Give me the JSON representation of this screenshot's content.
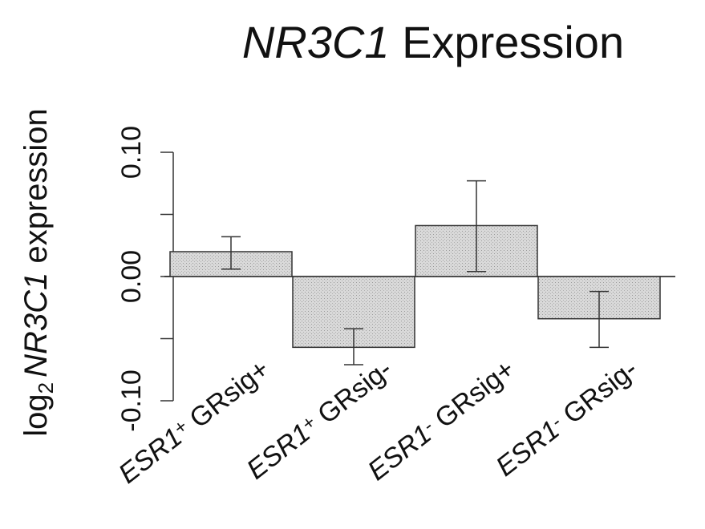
{
  "chart_data": {
    "type": "bar",
    "title_gene": "NR3C1",
    "title_rest": " Expression",
    "ylabel_prefix": "log",
    "ylabel_sub": "2",
    "ylabel_gene": "NR3C1",
    "ylabel_rest": " expression",
    "ylim": [
      -0.1,
      0.1
    ],
    "yticks": [
      -0.1,
      -0.05,
      0.0,
      0.05,
      0.1
    ],
    "ytick_labels": [
      "-0.10",
      "",
      "0.00",
      "",
      "0.10"
    ],
    "categories": [
      {
        "gene": "ESR1",
        "sign": "+",
        "rest": " GRsig+"
      },
      {
        "gene": "ESR1",
        "sign": "+",
        "rest": " GRsig-"
      },
      {
        "gene": "ESR1",
        "sign": "-",
        "rest": " GRsig+"
      },
      {
        "gene": "ESR1",
        "sign": "-",
        "rest": " GRsig-"
      }
    ],
    "values": [
      0.02,
      -0.057,
      0.041,
      -0.034
    ],
    "err_low": [
      0.006,
      -0.071,
      0.004,
      -0.057
    ],
    "err_high": [
      0.032,
      -0.042,
      0.077,
      -0.012
    ],
    "grid": false,
    "colors": {
      "bar_fill": "#d2d2d2",
      "bar_stroke": "#333333",
      "axis": "#333333"
    }
  }
}
